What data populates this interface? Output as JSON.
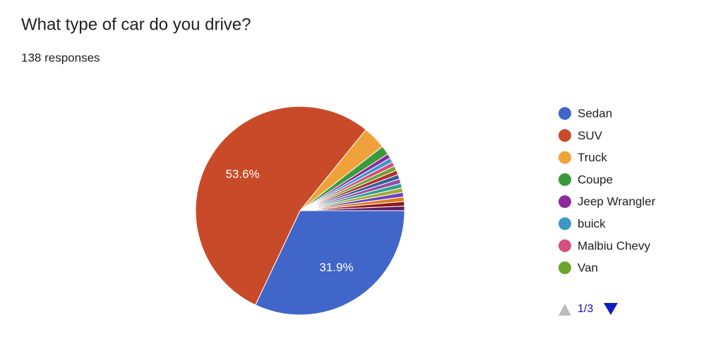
{
  "chart_data": {
    "type": "pie",
    "title": "What type of car do you drive?",
    "subtitle": "138 responses",
    "categories": [
      "Sedan",
      "SUV",
      "Truck",
      "Coupe",
      "Jeep Wrangler",
      "buick",
      "Malbiu Chevy",
      "Van",
      null,
      null,
      null,
      null,
      null,
      null,
      null,
      null,
      null
    ],
    "values": [
      31.9,
      53.6,
      3.6,
      1.4,
      0.7,
      0.7,
      0.7,
      0.7,
      0.7,
      0.7,
      0.7,
      0.7,
      0.7,
      0.7,
      0.7,
      0.7,
      0.7
    ],
    "value_labels": [
      "31.9%",
      "53.6%",
      null,
      null,
      null,
      null,
      null,
      null,
      null,
      null,
      null,
      null,
      null,
      null,
      null,
      null,
      null
    ],
    "colors": [
      "#4166c9",
      "#c94a28",
      "#f0a23a",
      "#3a9a3a",
      "#8e2a9e",
      "#3d98c6",
      "#d44f7f",
      "#6aa62c",
      "#b33030",
      "#35609c",
      "#974d9c",
      "#2fa095",
      "#a8a832",
      "#6444c4",
      "#e07b1e",
      "#8b1a1a",
      "#5e1f66"
    ],
    "legend_page": "1/3"
  }
}
